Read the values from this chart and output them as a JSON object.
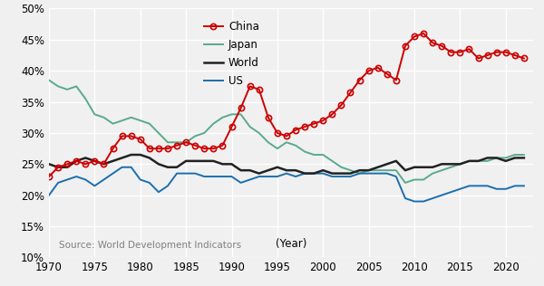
{
  "years": [
    1970,
    1971,
    1972,
    1973,
    1974,
    1975,
    1976,
    1977,
    1978,
    1979,
    1980,
    1981,
    1982,
    1983,
    1984,
    1985,
    1986,
    1987,
    1988,
    1989,
    1990,
    1991,
    1992,
    1993,
    1994,
    1995,
    1996,
    1997,
    1998,
    1999,
    2000,
    2001,
    2002,
    2003,
    2004,
    2005,
    2006,
    2007,
    2008,
    2009,
    2010,
    2011,
    2012,
    2013,
    2014,
    2015,
    2016,
    2017,
    2018,
    2019,
    2020,
    2021,
    2022
  ],
  "china": [
    23.0,
    24.5,
    25.0,
    25.5,
    25.0,
    25.5,
    25.0,
    27.5,
    29.5,
    29.5,
    29.0,
    27.5,
    27.5,
    27.5,
    28.0,
    28.5,
    28.0,
    27.5,
    27.5,
    28.0,
    31.0,
    34.0,
    37.5,
    37.0,
    32.5,
    30.0,
    29.5,
    30.5,
    31.0,
    31.5,
    32.0,
    33.0,
    34.5,
    36.5,
    38.5,
    40.0,
    40.5,
    39.5,
    38.5,
    44.0,
    45.5,
    46.0,
    44.5,
    44.0,
    43.0,
    43.0,
    43.5,
    42.0,
    42.5,
    43.0,
    43.0,
    42.5,
    42.0
  ],
  "japan": [
    38.5,
    37.5,
    37.0,
    37.5,
    35.5,
    33.0,
    32.5,
    31.5,
    32.0,
    32.5,
    32.0,
    31.5,
    30.0,
    28.5,
    28.5,
    28.5,
    29.5,
    30.0,
    31.5,
    32.5,
    33.0,
    33.0,
    31.0,
    30.0,
    28.5,
    27.5,
    28.5,
    28.0,
    27.0,
    26.5,
    26.5,
    25.5,
    24.5,
    24.0,
    23.5,
    24.0,
    24.0,
    24.0,
    24.0,
    22.0,
    22.5,
    22.5,
    23.5,
    24.0,
    24.5,
    25.0,
    25.5,
    25.5,
    25.5,
    26.0,
    26.0,
    26.5,
    26.5
  ],
  "world": [
    25.0,
    24.5,
    24.5,
    25.5,
    26.0,
    25.5,
    25.0,
    25.5,
    26.0,
    26.5,
    26.5,
    26.0,
    25.0,
    24.5,
    24.5,
    25.5,
    25.5,
    25.5,
    25.5,
    25.0,
    25.0,
    24.0,
    24.0,
    23.5,
    24.0,
    24.5,
    24.0,
    24.0,
    23.5,
    23.5,
    24.0,
    23.5,
    23.5,
    23.5,
    24.0,
    24.0,
    24.5,
    25.0,
    25.5,
    24.0,
    24.5,
    24.5,
    24.5,
    25.0,
    25.0,
    25.0,
    25.5,
    25.5,
    26.0,
    26.0,
    25.5,
    26.0,
    26.0
  ],
  "us": [
    20.0,
    22.0,
    22.5,
    23.0,
    22.5,
    21.5,
    22.5,
    23.5,
    24.5,
    24.5,
    22.5,
    22.0,
    20.5,
    21.5,
    23.5,
    23.5,
    23.5,
    23.0,
    23.0,
    23.0,
    23.0,
    22.0,
    22.5,
    23.0,
    23.0,
    23.0,
    23.5,
    23.0,
    23.5,
    23.5,
    23.5,
    23.0,
    23.0,
    23.0,
    23.5,
    23.5,
    23.5,
    23.5,
    23.0,
    19.5,
    19.0,
    19.0,
    19.5,
    20.0,
    20.5,
    21.0,
    21.5,
    21.5,
    21.5,
    21.0,
    21.0,
    21.5,
    21.5
  ],
  "china_color": "#cc0000",
  "japan_color": "#5aaa8a",
  "world_color": "#222222",
  "us_color": "#1a6faf",
  "bg_color": "#f0f0f0",
  "grid_color": "#ffffff",
  "ylim": [
    10,
    50
  ],
  "yticks": [
    10,
    15,
    20,
    25,
    30,
    35,
    40,
    45,
    50
  ],
  "xticks": [
    1970,
    1975,
    1980,
    1985,
    1990,
    1995,
    2000,
    2005,
    2010,
    2015,
    2020
  ],
  "source_text": "Source: World Development Indicators",
  "xlabel_text": "(Year)"
}
